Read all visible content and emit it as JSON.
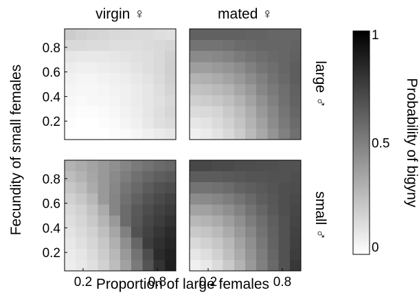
{
  "chart_data": {
    "type": "heatmap",
    "column_titles": [
      "virgin ♀",
      "mated ♀"
    ],
    "row_titles": [
      "large ♂",
      "small ♂"
    ],
    "xlabel": "Proportion of large females",
    "ylabel": "Fecundity of small females",
    "x_ticks": [
      "0.2",
      "0.8"
    ],
    "y_ticks": [
      "0.8",
      "0.6",
      "0.4",
      "0.2"
    ],
    "x_range": [
      0.05,
      0.95
    ],
    "y_range": [
      0.05,
      0.95
    ],
    "grid_size": 10,
    "colorbar": {
      "label": "Probability of bigyny",
      "ticks": [
        "1",
        "0.5",
        "0"
      ],
      "range": [
        0,
        1
      ],
      "colormap": "gray (white=0, black=1)"
    },
    "panels": [
      {
        "column": "virgin ♀",
        "row": "large ♂",
        "values": [
          [
            0.2,
            0.18,
            0.17,
            0.16,
            0.15,
            0.15,
            0.14,
            0.14,
            0.13,
            0.12
          ],
          [
            0.15,
            0.15,
            0.14,
            0.14,
            0.13,
            0.13,
            0.13,
            0.14,
            0.15,
            0.16
          ],
          [
            0.1,
            0.09,
            0.09,
            0.09,
            0.1,
            0.11,
            0.12,
            0.13,
            0.15,
            0.18
          ],
          [
            0.07,
            0.06,
            0.06,
            0.07,
            0.08,
            0.09,
            0.11,
            0.13,
            0.15,
            0.19
          ],
          [
            0.05,
            0.04,
            0.04,
            0.05,
            0.06,
            0.07,
            0.09,
            0.11,
            0.14,
            0.18
          ],
          [
            0.04,
            0.03,
            0.03,
            0.04,
            0.05,
            0.06,
            0.08,
            0.1,
            0.13,
            0.17
          ],
          [
            0.03,
            0.02,
            0.03,
            0.03,
            0.04,
            0.06,
            0.08,
            0.1,
            0.12,
            0.15
          ],
          [
            0.02,
            0.01,
            0.01,
            0.02,
            0.03,
            0.05,
            0.07,
            0.1,
            0.13,
            0.16
          ],
          [
            0.01,
            0.0,
            0.0,
            0.01,
            0.02,
            0.04,
            0.06,
            0.09,
            0.12,
            0.14
          ],
          [
            0.0,
            0.0,
            0.0,
            0.0,
            0.01,
            0.02,
            0.04,
            0.06,
            0.08,
            0.1
          ]
        ]
      },
      {
        "column": "mated ♀",
        "row": "large ♂",
        "values": [
          [
            0.62,
            0.62,
            0.62,
            0.62,
            0.62,
            0.61,
            0.61,
            0.6,
            0.6,
            0.6
          ],
          [
            0.55,
            0.55,
            0.55,
            0.56,
            0.58,
            0.59,
            0.6,
            0.6,
            0.6,
            0.61
          ],
          [
            0.46,
            0.46,
            0.47,
            0.49,
            0.52,
            0.55,
            0.57,
            0.59,
            0.6,
            0.62
          ],
          [
            0.38,
            0.38,
            0.4,
            0.42,
            0.45,
            0.5,
            0.54,
            0.57,
            0.6,
            0.63
          ],
          [
            0.3,
            0.31,
            0.33,
            0.36,
            0.4,
            0.45,
            0.5,
            0.55,
            0.59,
            0.63
          ],
          [
            0.24,
            0.25,
            0.27,
            0.3,
            0.35,
            0.4,
            0.47,
            0.52,
            0.57,
            0.62
          ],
          [
            0.19,
            0.2,
            0.22,
            0.25,
            0.3,
            0.36,
            0.43,
            0.5,
            0.56,
            0.61
          ],
          [
            0.14,
            0.15,
            0.17,
            0.21,
            0.26,
            0.32,
            0.4,
            0.47,
            0.54,
            0.6
          ],
          [
            0.1,
            0.11,
            0.14,
            0.18,
            0.23,
            0.3,
            0.37,
            0.45,
            0.52,
            0.58
          ],
          [
            0.06,
            0.08,
            0.11,
            0.15,
            0.2,
            0.27,
            0.34,
            0.42,
            0.5,
            0.56
          ]
        ]
      },
      {
        "column": "virgin ♀",
        "row": "small ♂",
        "values": [
          [
            0.3,
            0.33,
            0.36,
            0.4,
            0.44,
            0.48,
            0.52,
            0.55,
            0.58,
            0.6
          ],
          [
            0.26,
            0.3,
            0.35,
            0.4,
            0.46,
            0.51,
            0.56,
            0.6,
            0.63,
            0.65
          ],
          [
            0.22,
            0.26,
            0.33,
            0.4,
            0.47,
            0.54,
            0.59,
            0.64,
            0.68,
            0.7
          ],
          [
            0.18,
            0.22,
            0.28,
            0.4,
            0.48,
            0.56,
            0.62,
            0.67,
            0.71,
            0.74
          ],
          [
            0.15,
            0.18,
            0.24,
            0.33,
            0.48,
            0.58,
            0.65,
            0.7,
            0.74,
            0.77
          ],
          [
            0.13,
            0.16,
            0.21,
            0.29,
            0.4,
            0.58,
            0.66,
            0.72,
            0.76,
            0.8
          ],
          [
            0.11,
            0.14,
            0.18,
            0.25,
            0.35,
            0.5,
            0.68,
            0.74,
            0.79,
            0.83
          ],
          [
            0.09,
            0.12,
            0.16,
            0.22,
            0.31,
            0.44,
            0.6,
            0.76,
            0.81,
            0.85
          ],
          [
            0.08,
            0.1,
            0.14,
            0.2,
            0.28,
            0.4,
            0.55,
            0.7,
            0.83,
            0.87
          ],
          [
            0.07,
            0.09,
            0.12,
            0.18,
            0.26,
            0.37,
            0.52,
            0.67,
            0.8,
            0.88
          ]
        ]
      },
      {
        "column": "mated ♀",
        "row": "small ♂",
        "values": [
          [
            0.72,
            0.72,
            0.71,
            0.71,
            0.7,
            0.7,
            0.69,
            0.69,
            0.68,
            0.68
          ],
          [
            0.64,
            0.64,
            0.64,
            0.65,
            0.66,
            0.67,
            0.67,
            0.68,
            0.68,
            0.69
          ],
          [
            0.55,
            0.55,
            0.56,
            0.58,
            0.61,
            0.63,
            0.65,
            0.67,
            0.69,
            0.7
          ],
          [
            0.45,
            0.46,
            0.48,
            0.51,
            0.55,
            0.59,
            0.63,
            0.66,
            0.69,
            0.71
          ],
          [
            0.36,
            0.37,
            0.4,
            0.44,
            0.49,
            0.55,
            0.6,
            0.65,
            0.69,
            0.72
          ],
          [
            0.28,
            0.3,
            0.33,
            0.38,
            0.44,
            0.51,
            0.57,
            0.63,
            0.68,
            0.73
          ],
          [
            0.21,
            0.23,
            0.27,
            0.33,
            0.4,
            0.47,
            0.55,
            0.62,
            0.68,
            0.74
          ],
          [
            0.15,
            0.18,
            0.22,
            0.28,
            0.36,
            0.44,
            0.53,
            0.61,
            0.68,
            0.75
          ],
          [
            0.1,
            0.13,
            0.18,
            0.25,
            0.33,
            0.42,
            0.51,
            0.6,
            0.68,
            0.76
          ],
          [
            0.06,
            0.09,
            0.14,
            0.21,
            0.3,
            0.4,
            0.5,
            0.59,
            0.68,
            0.78
          ]
        ]
      }
    ]
  }
}
